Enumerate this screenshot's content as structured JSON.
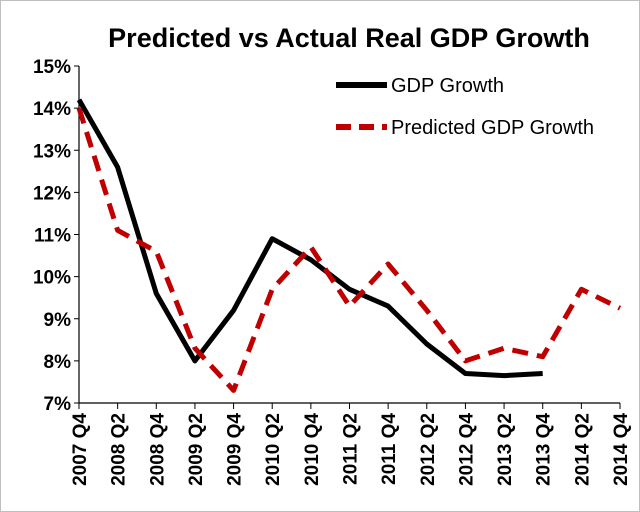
{
  "chart_data": {
    "type": "line",
    "title": "Predicted vs Actual Real GDP Growth",
    "xlabel": "",
    "ylabel": "",
    "categories": [
      "2007 Q4",
      "2008 Q2",
      "2008 Q4",
      "2009 Q2",
      "2009 Q4",
      "2010 Q2",
      "2010 Q4",
      "2011 Q2",
      "2011 Q4",
      "2012 Q2",
      "2012 Q4",
      "2013 Q2",
      "2013 Q4",
      "2014 Q2",
      "2014 Q4"
    ],
    "ylim": [
      7,
      15
    ],
    "yticks": [
      "7%",
      "8%",
      "9%",
      "10%",
      "11%",
      "12%",
      "13%",
      "14%",
      "15%"
    ],
    "grid": false,
    "legend_position": "top-right",
    "series": [
      {
        "name": "GDP Growth",
        "color": "#000000",
        "style": "solid",
        "values": [
          14.2,
          12.6,
          9.6,
          8.0,
          9.2,
          10.9,
          10.4,
          9.7,
          9.3,
          8.4,
          7.7,
          7.65,
          7.7,
          null,
          null
        ]
      },
      {
        "name": "Predicted GDP Growth",
        "color": "#c00000",
        "style": "dashed",
        "values": [
          14.0,
          11.1,
          10.6,
          8.3,
          7.3,
          9.7,
          10.7,
          9.3,
          10.3,
          9.2,
          8.0,
          8.3,
          8.1,
          9.7,
          9.25
        ]
      }
    ]
  }
}
